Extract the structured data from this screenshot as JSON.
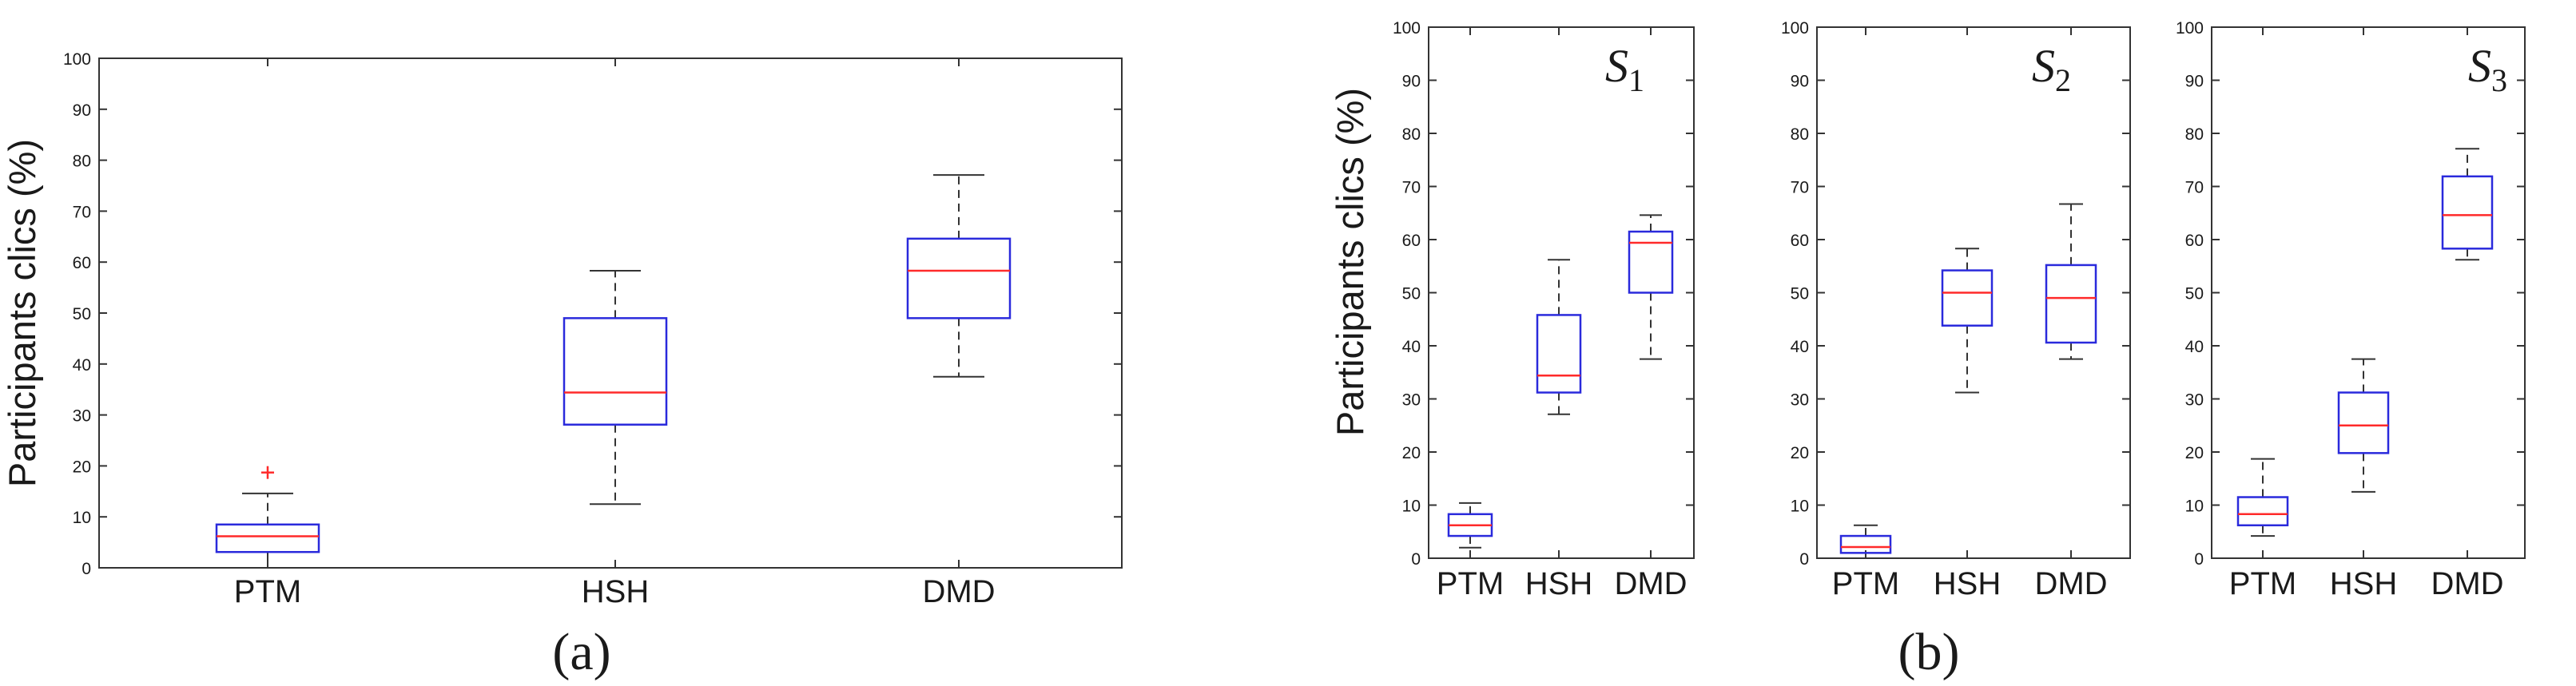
{
  "figure": {
    "label_a": "(a)",
    "label_b": "(b)"
  },
  "colors": {
    "box": "#2a2adc",
    "median": "#ff2a2a",
    "whisker": "#333333",
    "outlier": "#ff2a2a",
    "axis": "#333333"
  },
  "chart_data": [
    {
      "type": "box",
      "panel": "a",
      "title": "",
      "ylabel": "Participants clics (%)",
      "ylim": [
        0,
        100
      ],
      "yticks": [
        0,
        10,
        20,
        30,
        40,
        50,
        60,
        70,
        80,
        90,
        100
      ],
      "categories": [
        "PTM",
        "HSH",
        "DMD"
      ],
      "boxes": [
        {
          "whisker_low": 0,
          "q1": 3.1,
          "median": 6.2,
          "q3": 8.5,
          "whisker_high": 14.6,
          "outliers": [
            18.7
          ]
        },
        {
          "whisker_low": 12.5,
          "q1": 28.1,
          "median": 34.4,
          "q3": 49.0,
          "whisker_high": 58.3,
          "outliers": []
        },
        {
          "whisker_low": 37.5,
          "q1": 49.0,
          "median": 58.3,
          "q3": 64.6,
          "whisker_high": 77.1,
          "outliers": []
        }
      ]
    },
    {
      "type": "box",
      "panel": "b",
      "subplot": "S1",
      "subscript_main": "S",
      "subscript_index": "1",
      "ylabel": "Participants clics (%)",
      "ylim": [
        0,
        100
      ],
      "yticks": [
        0,
        10,
        20,
        30,
        40,
        50,
        60,
        70,
        80,
        90,
        100
      ],
      "categories": [
        "PTM",
        "HSH",
        "DMD"
      ],
      "boxes": [
        {
          "whisker_low": 2.0,
          "q1": 4.2,
          "median": 6.2,
          "q3": 8.3,
          "whisker_high": 10.4,
          "outliers": []
        },
        {
          "whisker_low": 27.1,
          "q1": 31.2,
          "median": 34.4,
          "q3": 45.8,
          "whisker_high": 56.2,
          "outliers": []
        },
        {
          "whisker_low": 37.5,
          "q1": 50.0,
          "median": 59.4,
          "q3": 61.5,
          "whisker_high": 64.6,
          "outliers": []
        }
      ]
    },
    {
      "type": "box",
      "panel": "b",
      "subplot": "S2",
      "subscript_main": "S",
      "subscript_index": "2",
      "ylabel": "",
      "ylim": [
        0,
        100
      ],
      "yticks": [
        0,
        10,
        20,
        30,
        40,
        50,
        60,
        70,
        80,
        90,
        100
      ],
      "categories": [
        "PTM",
        "HSH",
        "DMD"
      ],
      "boxes": [
        {
          "whisker_low": 0,
          "q1": 1.0,
          "median": 2.1,
          "q3": 4.2,
          "whisker_high": 6.2,
          "outliers": []
        },
        {
          "whisker_low": 31.2,
          "q1": 43.8,
          "median": 50.0,
          "q3": 54.2,
          "whisker_high": 58.3,
          "outliers": []
        },
        {
          "whisker_low": 37.5,
          "q1": 40.6,
          "median": 49.0,
          "q3": 55.2,
          "whisker_high": 66.7,
          "outliers": []
        }
      ]
    },
    {
      "type": "box",
      "panel": "b",
      "subplot": "S3",
      "subscript_main": "S",
      "subscript_index": "3",
      "ylabel": "",
      "ylim": [
        0,
        100
      ],
      "yticks": [
        0,
        10,
        20,
        30,
        40,
        50,
        60,
        70,
        80,
        90,
        100
      ],
      "categories": [
        "PTM",
        "HSH",
        "DMD"
      ],
      "boxes": [
        {
          "whisker_low": 4.2,
          "q1": 6.2,
          "median": 8.3,
          "q3": 11.5,
          "whisker_high": 18.7,
          "outliers": []
        },
        {
          "whisker_low": 12.5,
          "q1": 19.8,
          "median": 25.0,
          "q3": 31.2,
          "whisker_high": 37.5,
          "outliers": []
        },
        {
          "whisker_low": 56.2,
          "q1": 58.3,
          "median": 64.6,
          "q3": 71.9,
          "whisker_high": 77.1,
          "outliers": []
        }
      ]
    }
  ]
}
